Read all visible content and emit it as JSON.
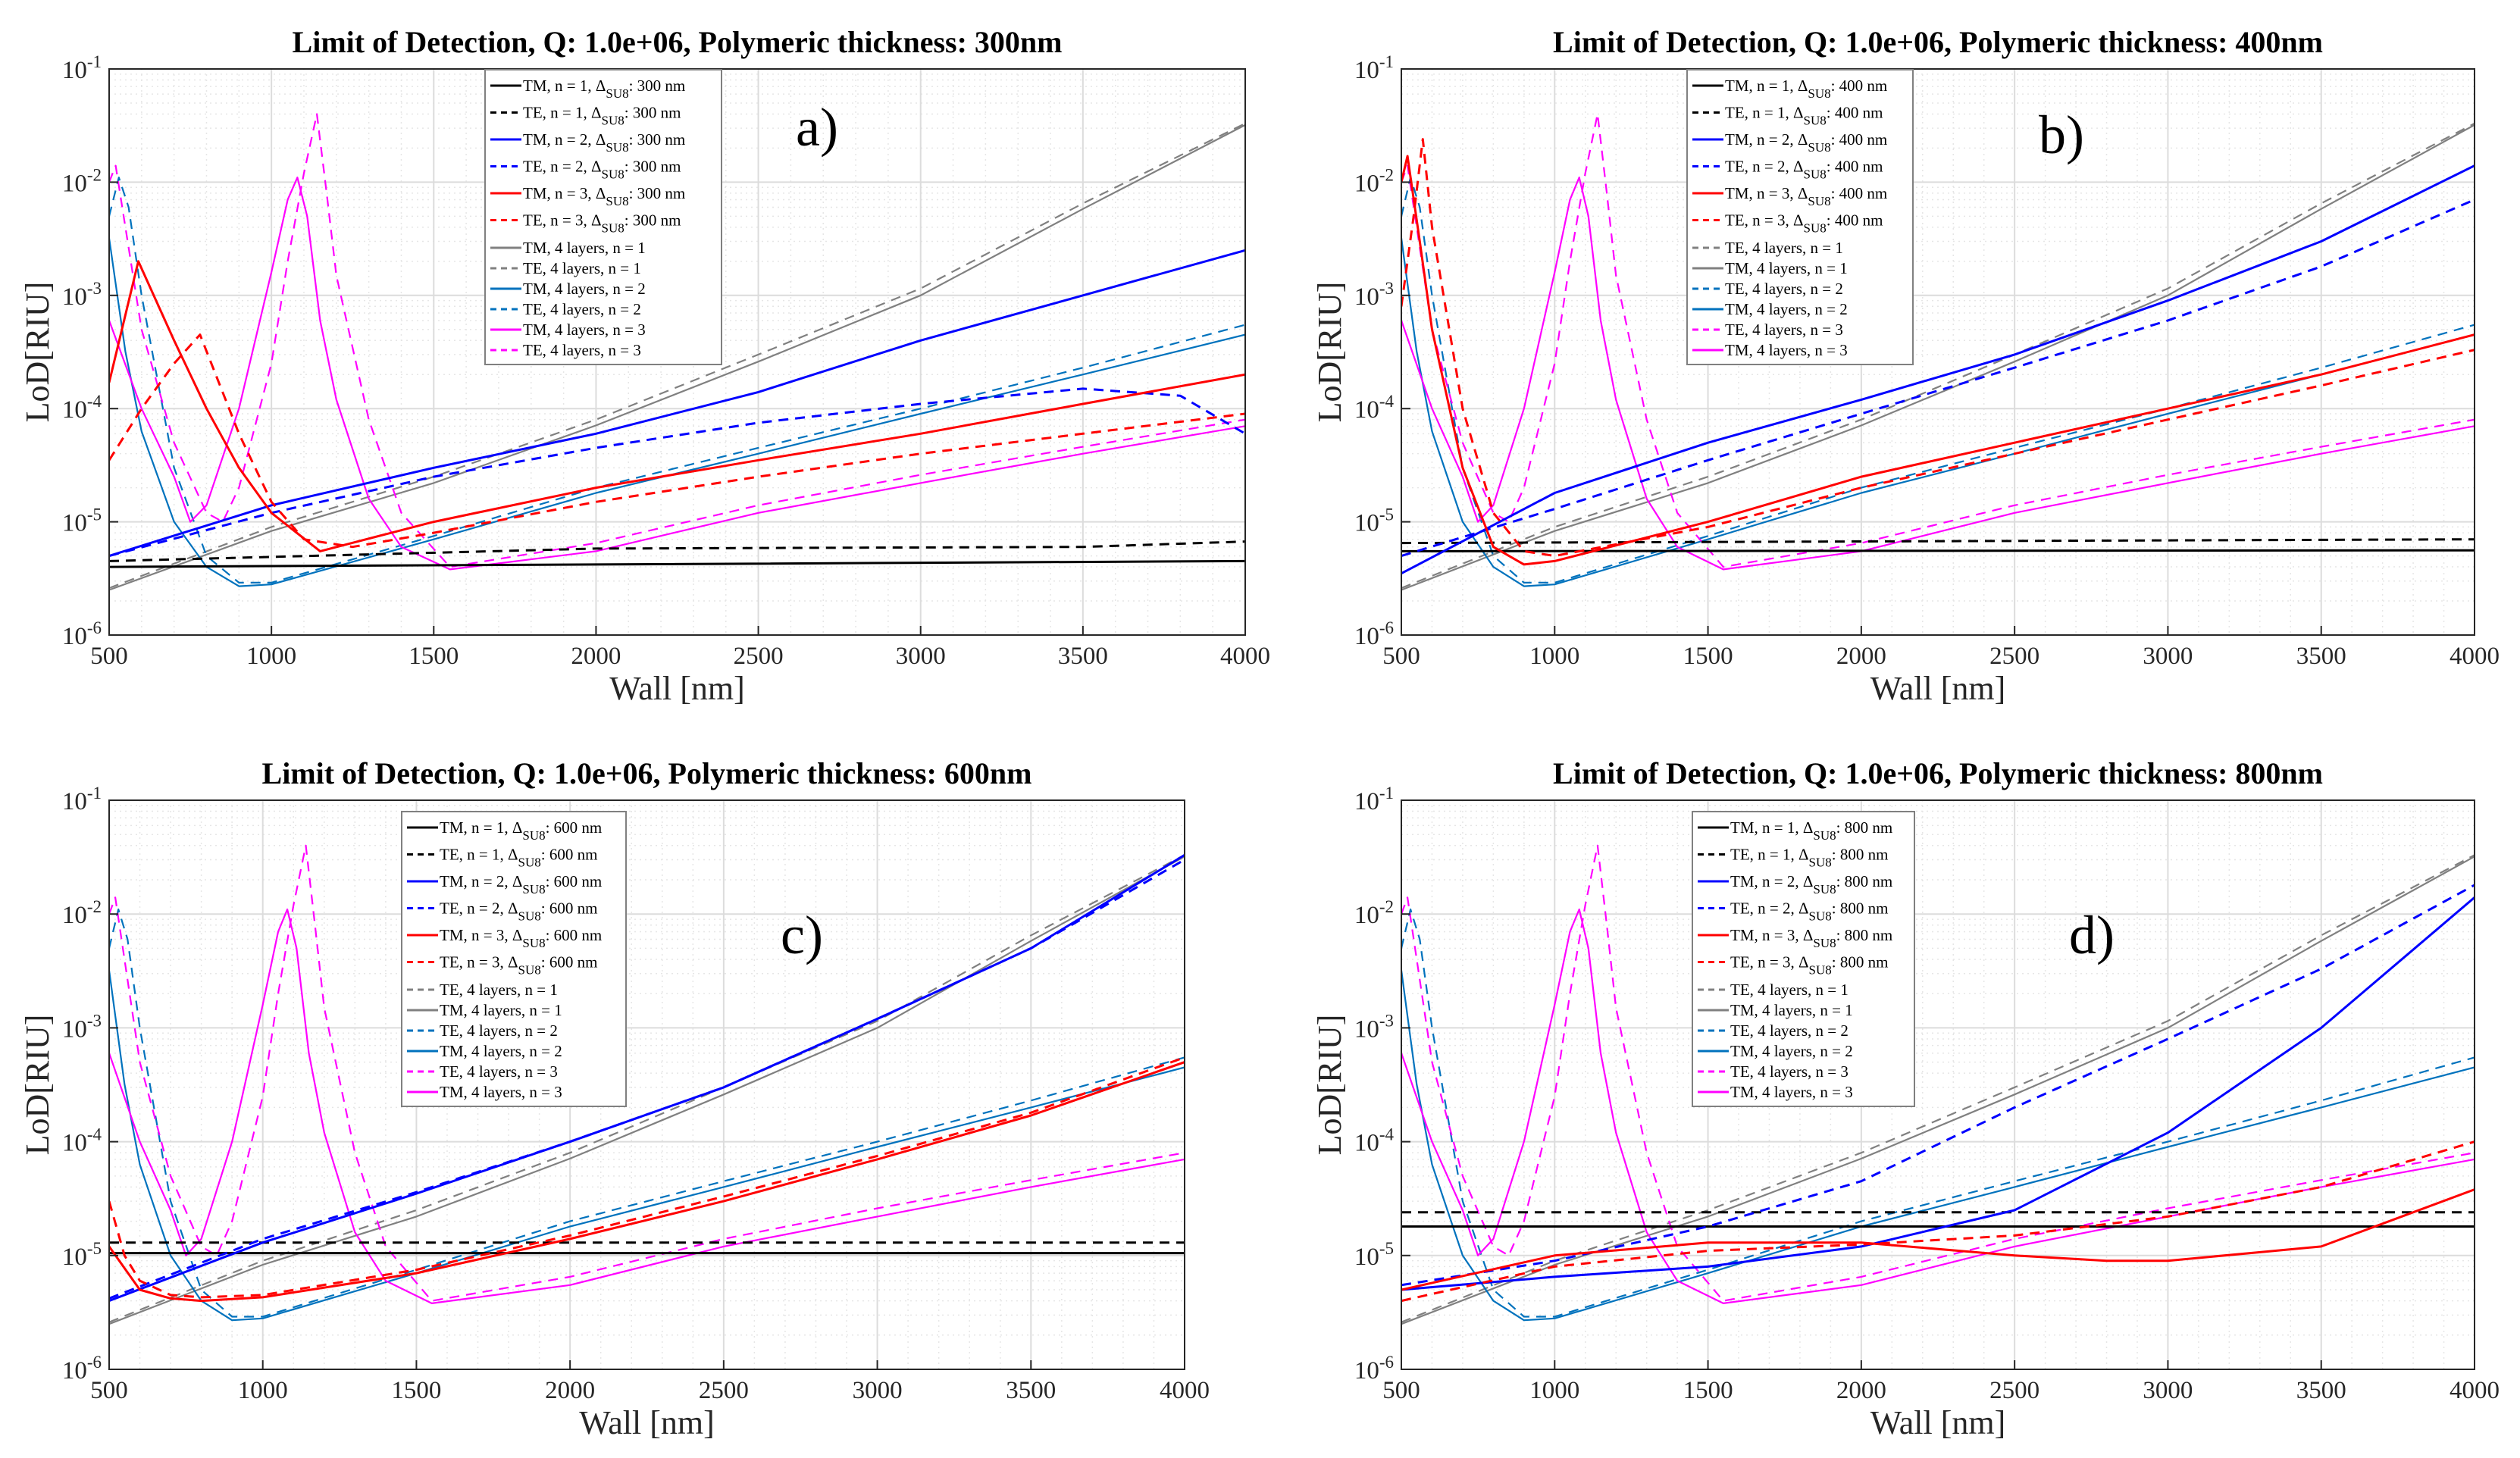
{
  "chart_data": {
    "type": "line",
    "yscale": "log",
    "xlim": [
      500,
      4000
    ],
    "ylim": [
      1e-06,
      0.1
    ],
    "xticks": [
      "500",
      "1000",
      "1500",
      "2000",
      "2500",
      "3000",
      "3500",
      "4000"
    ],
    "yticks": [
      {
        "base": "10",
        "exp": "-6"
      },
      {
        "base": "10",
        "exp": "-5"
      },
      {
        "base": "10",
        "exp": "-4"
      },
      {
        "base": "10",
        "exp": "-3"
      },
      {
        "base": "10",
        "exp": "-2"
      },
      {
        "base": "10",
        "exp": "-1"
      }
    ],
    "xlabel": "Wall [nm]",
    "ylabel": "LoD[RIU]",
    "grid": true,
    "colors": {
      "black": "#000000",
      "blue": "#0000ff",
      "red": "#ff0000",
      "gray": "#808080",
      "teal": "#0072bd",
      "magenta": "#ff00ff"
    },
    "four_layer_series": {
      "TM4L1": {
        "label": "TM, 4 layers,  n = 1",
        "color": "#808080",
        "dash": false,
        "x": [
          500,
          1000,
          1500,
          2000,
          2500,
          3000,
          3500,
          4000
        ],
        "y": [
          2.5e-06,
          8.3e-06,
          2.2e-05,
          7.1e-05,
          0.00026,
          0.001,
          0.0058,
          0.032
        ]
      },
      "TE4L1": {
        "label": "TE, 4 layers,  n = 1",
        "color": "#808080",
        "dash": true,
        "x": [
          500,
          1000,
          1500,
          2000,
          2500,
          3000,
          3500,
          4000
        ],
        "y": [
          2.6e-06,
          9e-06,
          2.5e-05,
          8e-05,
          0.0003,
          0.00115,
          0.0065,
          0.033
        ]
      },
      "TM4L2": {
        "label": "TM, 4 layers,  n = 2",
        "color": "#0072bd",
        "dash": false,
        "x": [
          500,
          550,
          600,
          700,
          800,
          900,
          1000,
          1500,
          2000,
          2500,
          3000,
          3500,
          4000
        ],
        "y": [
          0.0032,
          0.00032,
          6.3e-05,
          1e-05,
          4e-06,
          2.7e-06,
          2.8e-06,
          7e-06,
          1.8e-05,
          4e-05,
          9e-05,
          0.0002,
          0.00045
        ]
      },
      "TE4L2": {
        "label": "TE, 4 layers,  n = 2",
        "color": "#0072bd",
        "dash": true,
        "x": [
          500,
          530,
          560,
          600,
          700,
          800,
          900,
          1000,
          1500,
          2000,
          2500,
          3000,
          3500,
          4000
        ],
        "y": [
          0.005,
          0.011,
          0.006,
          0.001,
          3e-05,
          5e-06,
          2.9e-06,
          2.9e-06,
          7.5e-06,
          2e-05,
          4.5e-05,
          0.0001,
          0.00023,
          0.00055
        ]
      },
      "TM4L3": {
        "label": "TM, 4 layers,  n = 3",
        "color": "#ff00ff",
        "dash": false,
        "x": [
          500,
          600,
          700,
          750,
          800,
          900,
          1000,
          1050,
          1080,
          1110,
          1150,
          1200,
          1300,
          1400,
          1550,
          2000,
          2500,
          3000,
          3500,
          4000
        ],
        "y": [
          0.0006,
          0.0001,
          2.5e-05,
          1e-05,
          1.4e-05,
          0.0001,
          0.0016,
          0.007,
          0.011,
          0.005,
          0.0006,
          0.00012,
          1.6e-05,
          6e-06,
          3.8e-06,
          5.5e-06,
          1.2e-05,
          2.2e-05,
          4e-05,
          7e-05
        ]
      },
      "TE4L3": {
        "label": "TE, 4 layers,  n = 3",
        "color": "#ff00ff",
        "dash": true,
        "x": [
          500,
          520,
          600,
          700,
          800,
          850,
          900,
          1000,
          1050,
          1100,
          1140,
          1170,
          1200,
          1300,
          1400,
          1550,
          2000,
          2500,
          3000,
          3500,
          4000
        ],
        "y": [
          0.01,
          0.014,
          0.0005,
          5e-05,
          1.2e-05,
          1e-05,
          2e-05,
          0.00025,
          0.002,
          0.012,
          0.04,
          0.008,
          0.0015,
          8e-05,
          1.2e-05,
          4e-06,
          6.5e-06,
          1.4e-05,
          2.6e-05,
          4.6e-05,
          8e-05
        ]
      }
    },
    "panels": [
      {
        "title": "Limit of Detection, Q: 1.0e+06, Polymeric thickness: 300nm",
        "panel_label": "a)",
        "legend_order": [
          "TM1",
          "TE1",
          "TM2",
          "TE2",
          "TM3",
          "TE3",
          "TM4L1",
          "TE4L1",
          "TM4L2",
          "TE4L2",
          "TM4L3",
          "TE4L3"
        ],
        "series": {
          "TM1": {
            "label": "TM, n = 1, Δ",
            "sub": "SU8",
            "suffix": ": 300 nm",
            "color": "#000000",
            "dash": false,
            "x": [
              500,
              2000,
              4000
            ],
            "y": [
              4e-06,
              4.2e-06,
              4.5e-06
            ]
          },
          "TE1": {
            "label": "TE, n = 1, Δ",
            "sub": "SU8",
            "suffix": ": 300 nm",
            "color": "#000000",
            "dash": true,
            "x": [
              500,
              2000,
              3500,
              4000
            ],
            "y": [
              4.5e-06,
              5.8e-06,
              6e-06,
              6.7e-06
            ]
          },
          "TM2": {
            "label": "TM, n = 2, Δ",
            "sub": "SU8",
            "suffix": ": 300 nm",
            "color": "#0000ff",
            "dash": false,
            "x": [
              500,
              1000,
              1500,
              2000,
              2500,
              3000,
              3500,
              4000
            ],
            "y": [
              5e-06,
              1.4e-05,
              3e-05,
              6e-05,
              0.00014,
              0.0004,
              0.001,
              0.0025
            ]
          },
          "TE2": {
            "label": "TE, n = 2, Δ",
            "sub": "SU8",
            "suffix": ": 300 nm",
            "color": "#0000ff",
            "dash": true,
            "x": [
              500,
              1000,
              1500,
              2000,
              2500,
              3000,
              3500,
              3800,
              4000
            ],
            "y": [
              5e-06,
              1.2e-05,
              2.5e-05,
              4.5e-05,
              7.5e-05,
              0.00011,
              0.00015,
              0.00013,
              6e-05
            ]
          },
          "TM3": {
            "label": "TM, n = 3, Δ",
            "sub": "SU8",
            "suffix": ": 300 nm",
            "color": "#ff0000",
            "dash": false,
            "x": [
              500,
              590,
              700,
              800,
              900,
              1000,
              1150,
              1500,
              2000,
              2500,
              3000,
              3500,
              4000
            ],
            "y": [
              0.00017,
              0.002,
              0.0004,
              0.0001,
              3e-05,
              1.2e-05,
              5.5e-06,
              1e-05,
              2e-05,
              3.5e-05,
              6e-05,
              0.00011,
              0.0002
            ]
          },
          "TE3": {
            "label": "TE, n = 3, Δ",
            "sub": "SU8",
            "suffix": ": 300 nm",
            "color": "#ff0000",
            "dash": true,
            "x": [
              500,
              600,
              700,
              780,
              900,
              1000,
              1100,
              1250,
              1500,
              2000,
              2500,
              3000,
              3500,
              4000
            ],
            "y": [
              3.5e-05,
              0.0001,
              0.00025,
              0.00045,
              6e-05,
              1.5e-05,
              7e-06,
              6e-06,
              8e-06,
              1.5e-05,
              2.5e-05,
              4e-05,
              6e-05,
              9e-05
            ]
          }
        }
      },
      {
        "title": "Limit of Detection, Q: 1.0e+06, Polymeric thickness: 400nm",
        "panel_label": "b)",
        "legend_order": [
          "TM1",
          "TE1",
          "TM2",
          "TE2",
          "TM3",
          "TE3",
          "TE4L1",
          "TM4L1",
          "TE4L2",
          "TM4L2",
          "TE4L3",
          "TM4L3"
        ],
        "series": {
          "TM1": {
            "label": "TM, n = 1, Δ",
            "sub": "SU8",
            "suffix": ": 400 nm",
            "color": "#000000",
            "dash": false,
            "x": [
              500,
              4000
            ],
            "y": [
              5.5e-06,
              5.6e-06
            ]
          },
          "TE1": {
            "label": "TE, n = 1, Δ",
            "sub": "SU8",
            "suffix": ": 400 nm",
            "color": "#000000",
            "dash": true,
            "x": [
              500,
              4000
            ],
            "y": [
              6.5e-06,
              7e-06
            ]
          },
          "TM2": {
            "label": "TM, n = 2, Δ",
            "sub": "SU8",
            "suffix": ": 400 nm",
            "color": "#0000ff",
            "dash": false,
            "x": [
              500,
              1000,
              1500,
              2000,
              2500,
              3000,
              3500,
              4000
            ],
            "y": [
              3.5e-06,
              1.8e-05,
              5e-05,
              0.00012,
              0.0003,
              0.0009,
              0.003,
              0.014
            ]
          },
          "TE2": {
            "label": "TE, n = 2, Δ",
            "sub": "SU8",
            "suffix": ": 400 nm",
            "color": "#0000ff",
            "dash": true,
            "x": [
              500,
              1000,
              1500,
              2000,
              2500,
              3000,
              3500,
              4000
            ],
            "y": [
              5e-06,
              1.3e-05,
              3.5e-05,
              9e-05,
              0.00023,
              0.0006,
              0.0018,
              0.007
            ]
          },
          "TM3": {
            "label": "TM, n = 3, Δ",
            "sub": "SU8",
            "suffix": ": 400 nm",
            "color": "#ff0000",
            "dash": false,
            "x": [
              500,
              520,
              560,
              600,
              700,
              800,
              900,
              1000,
              1500,
              2000,
              2500,
              3000,
              3500,
              4000
            ],
            "y": [
              0.01,
              0.017,
              0.003,
              0.0005,
              3e-05,
              6e-06,
              4.2e-06,
              4.5e-06,
              1e-05,
              2.5e-05,
              5e-05,
              0.0001,
              0.0002,
              0.00045
            ]
          },
          "TE3": {
            "label": "TE, n = 3, Δ",
            "sub": "SU8",
            "suffix": ": 400 nm",
            "color": "#ff0000",
            "dash": true,
            "x": [
              500,
              540,
              570,
              600,
              700,
              800,
              900,
              1000,
              1500,
              2000,
              2500,
              3000,
              3500,
              4000
            ],
            "y": [
              0.0008,
              0.005,
              0.024,
              0.004,
              0.0001,
              1.2e-05,
              5.5e-06,
              5e-06,
              9e-06,
              2e-05,
              4e-05,
              8e-05,
              0.00016,
              0.00033
            ]
          }
        }
      },
      {
        "title": "Limit of Detection, Q: 1.0e+06, Polymeric thickness: 600nm",
        "panel_label": "c)",
        "legend_order": [
          "TM1",
          "TE1",
          "TM2",
          "TE2",
          "TM3",
          "TE3",
          "TE4L1",
          "TM4L1",
          "TE4L2",
          "TM4L2",
          "TE4L3",
          "TM4L3"
        ],
        "series": {
          "TM1": {
            "label": "TM, n = 1, Δ",
            "sub": "SU8",
            "suffix": ": 600 nm",
            "color": "#000000",
            "dash": false,
            "x": [
              500,
              4000
            ],
            "y": [
              1.05e-05,
              1.05e-05
            ]
          },
          "TE1": {
            "label": "TE, n = 1, Δ",
            "sub": "SU8",
            "suffix": ": 600 nm",
            "color": "#000000",
            "dash": true,
            "x": [
              500,
              4000
            ],
            "y": [
              1.3e-05,
              1.3e-05
            ]
          },
          "TM2": {
            "label": "TM, n = 2, Δ",
            "sub": "SU8",
            "suffix": ": 600 nm",
            "color": "#0000ff",
            "dash": false,
            "x": [
              500,
              1000,
              1500,
              2000,
              2500,
              3000,
              3500,
              4000
            ],
            "y": [
              4e-06,
              1.3e-05,
              3.5e-05,
              0.0001,
              0.0003,
              0.0012,
              0.005,
              0.033
            ]
          },
          "TE2": {
            "label": "TE, n = 2, Δ",
            "sub": "SU8",
            "suffix": ": 600 nm",
            "color": "#0000ff",
            "dash": true,
            "x": [
              500,
              1000,
              1500,
              2000,
              2500,
              3000,
              3500,
              4000
            ],
            "y": [
              4.2e-06,
              1.4e-05,
              3.6e-05,
              0.0001,
              0.0003,
              0.0012,
              0.005,
              0.03
            ]
          },
          "TM3": {
            "label": "TM, n = 3, Δ",
            "sub": "SU8",
            "suffix": ": 600 nm",
            "color": "#ff0000",
            "dash": false,
            "x": [
              500,
              600,
              700,
              800,
              1000,
              1500,
              2000,
              2500,
              3000,
              3500,
              4000
            ],
            "y": [
              1.2e-05,
              5e-06,
              4.2e-06,
              4e-06,
              4.3e-06,
              7e-06,
              1.4e-05,
              3e-05,
              7e-05,
              0.00017,
              0.0005
            ]
          },
          "TE3": {
            "label": "TE, n = 3, Δ",
            "sub": "SU8",
            "suffix": ": 600 nm",
            "color": "#ff0000",
            "dash": true,
            "x": [
              500,
              550,
              600,
              700,
              800,
              1000,
              1500,
              2000,
              2500,
              3000,
              3500,
              4000
            ],
            "y": [
              3e-05,
              1e-05,
              6e-06,
              4.5e-06,
              4.3e-06,
              4.5e-06,
              7.5e-06,
              1.5e-05,
              3.3e-05,
              7.5e-05,
              0.00018,
              0.00055
            ]
          }
        }
      },
      {
        "title": "Limit of Detection, Q: 1.0e+06, Polymeric thickness: 800nm",
        "panel_label": "d)",
        "legend_order": [
          "TM1",
          "TE1",
          "TM2",
          "TE2",
          "TM3",
          "TE3",
          "TE4L1",
          "TM4L1",
          "TE4L2",
          "TM4L2",
          "TE4L3",
          "TM4L3"
        ],
        "series": {
          "TM1": {
            "label": "TM, n = 1, Δ",
            "sub": "SU8",
            "suffix": ": 800 nm",
            "color": "#000000",
            "dash": false,
            "x": [
              500,
              4000
            ],
            "y": [
              1.8e-05,
              1.8e-05
            ]
          },
          "TE1": {
            "label": "TE, n = 1, Δ",
            "sub": "SU8",
            "suffix": ": 800 nm",
            "color": "#000000",
            "dash": true,
            "x": [
              500,
              4000
            ],
            "y": [
              2.4e-05,
              2.4e-05
            ]
          },
          "TM2": {
            "label": "TM, n = 2, Δ",
            "sub": "SU8",
            "suffix": ": 800 nm",
            "color": "#0000ff",
            "dash": false,
            "x": [
              500,
              1000,
              1500,
              2000,
              2500,
              3000,
              3500,
              4000
            ],
            "y": [
              5e-06,
              6.5e-06,
              8e-06,
              1.2e-05,
              2.5e-05,
              0.00012,
              0.001,
              0.014
            ]
          },
          "TE2": {
            "label": "TE, n = 2, Δ",
            "sub": "SU8",
            "suffix": ": 800 nm",
            "color": "#0000ff",
            "dash": true,
            "x": [
              500,
              1000,
              1500,
              2000,
              2500,
              3000,
              3500,
              4000
            ],
            "y": [
              5.5e-06,
              9e-06,
              1.8e-05,
              4.5e-05,
              0.0002,
              0.0008,
              0.0033,
              0.018
            ]
          },
          "TM3": {
            "label": "TM, n = 3, Δ",
            "sub": "SU8",
            "suffix": ": 800 nm",
            "color": "#ff0000",
            "dash": false,
            "x": [
              500,
              1000,
              1500,
              2000,
              2500,
              2800,
              3000,
              3500,
              4000
            ],
            "y": [
              5e-06,
              1e-05,
              1.3e-05,
              1.3e-05,
              1e-05,
              9e-06,
              9e-06,
              1.2e-05,
              3.8e-05
            ]
          },
          "TE3": {
            "label": "TE, n = 3, Δ",
            "sub": "SU8",
            "suffix": ": 800 nm",
            "color": "#ff0000",
            "dash": true,
            "x": [
              500,
              1000,
              1500,
              2000,
              2500,
              3000,
              3500,
              4000
            ],
            "y": [
              4e-06,
              8e-06,
              1.1e-05,
              1.25e-05,
              1.5e-05,
              2.2e-05,
              4e-05,
              0.0001
            ]
          }
        }
      }
    ]
  }
}
